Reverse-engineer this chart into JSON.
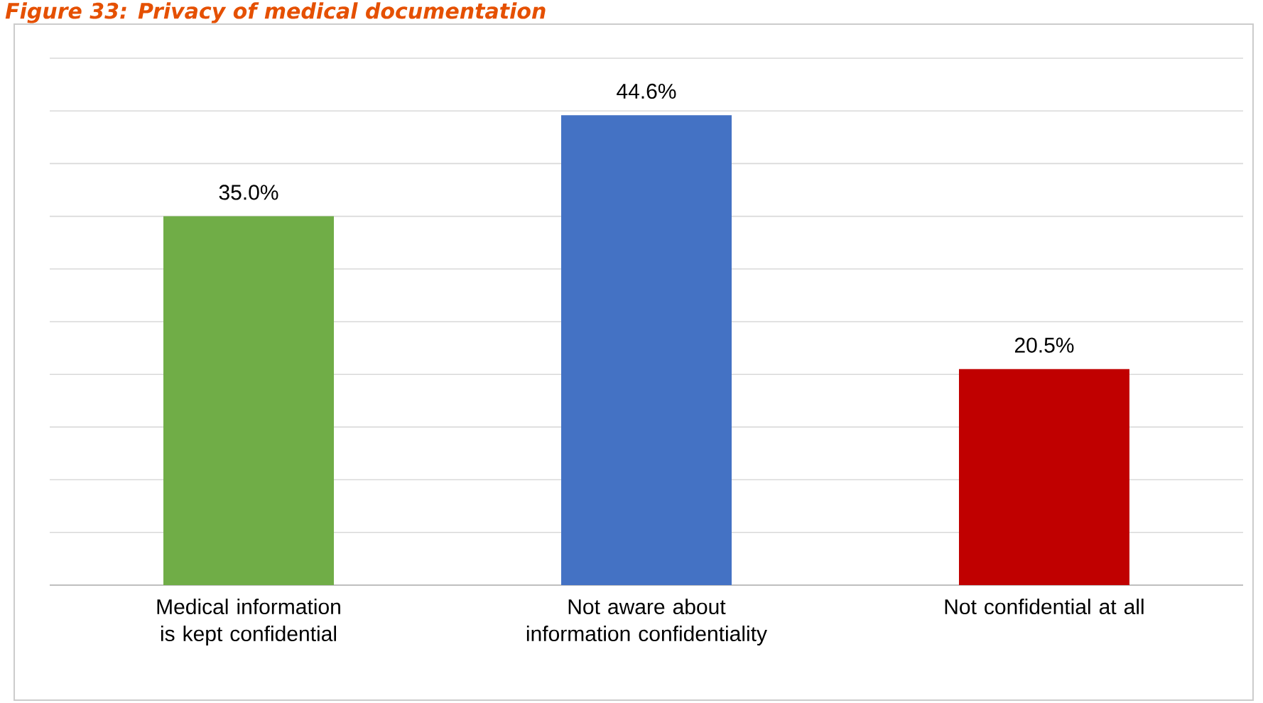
{
  "chart_data": {
    "type": "bar",
    "title": "Figure 33: Privacy of medical documentation",
    "categories": [
      "Medical information is kept confidential",
      "Not aware about information confidentiality",
      "Not confidential at all"
    ],
    "values": [
      35.0,
      44.6,
      20.5
    ],
    "colors": [
      "#70ad47",
      "#4472c4",
      "#c00000"
    ],
    "value_labels": [
      "35.0%",
      "44.6%",
      "20.5%"
    ],
    "ylim": [
      0,
      50
    ],
    "yticks": [
      {
        "value": 0,
        "label": null
      },
      {
        "value": 5,
        "label": null
      },
      {
        "value": 10,
        "label": null
      },
      {
        "value": 15,
        "label": null
      },
      {
        "value": 20,
        "label": null
      },
      {
        "value": 25,
        "label": null
      },
      {
        "value": 30,
        "label": null
      },
      {
        "value": 35,
        "label": null
      },
      {
        "value": 40,
        "label": null
      },
      {
        "value": 45,
        "label": null
      },
      {
        "value": 50,
        "label": null
      }
    ],
    "grid": "y",
    "tick_labels": "x"
  }
}
